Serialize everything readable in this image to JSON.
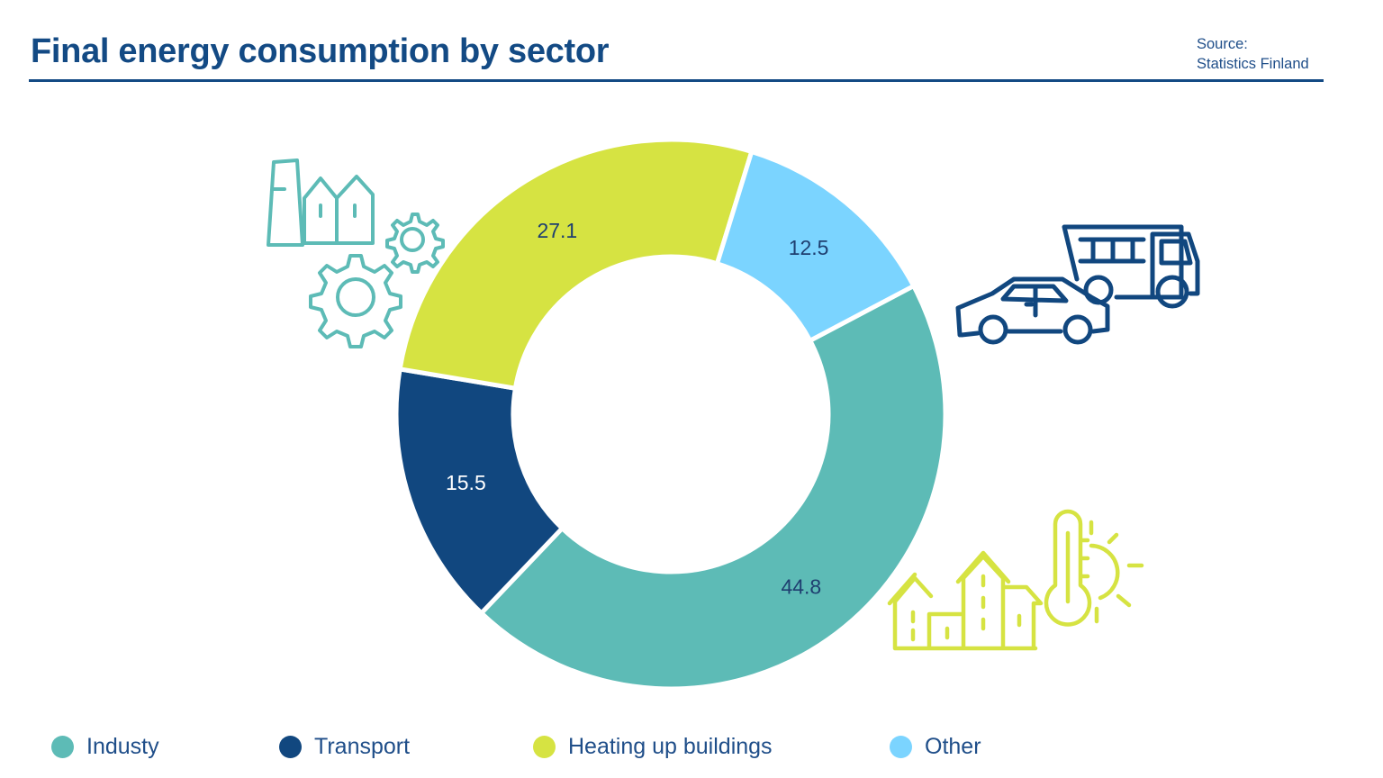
{
  "title": "Final energy consumption by sector",
  "source": {
    "label": "Source:",
    "name": "Statistics Finland"
  },
  "chart_data": {
    "type": "pie",
    "donut": true,
    "categories": [
      "Industy",
      "Transport",
      "Heating up buildings",
      "Other"
    ],
    "values": [
      44.8,
      15.5,
      27.1,
      12.5
    ],
    "data_labels": [
      "44.8",
      "15.5",
      "27.1",
      "12.5"
    ],
    "colors": [
      "#5dbbb6",
      "#11477f",
      "#d6e342",
      "#7bd4ff"
    ],
    "legend_position": "bottom",
    "icons": [
      "factory-gears-icon",
      "car-truck-icon",
      "houses-thermometer-sun-icon"
    ]
  }
}
